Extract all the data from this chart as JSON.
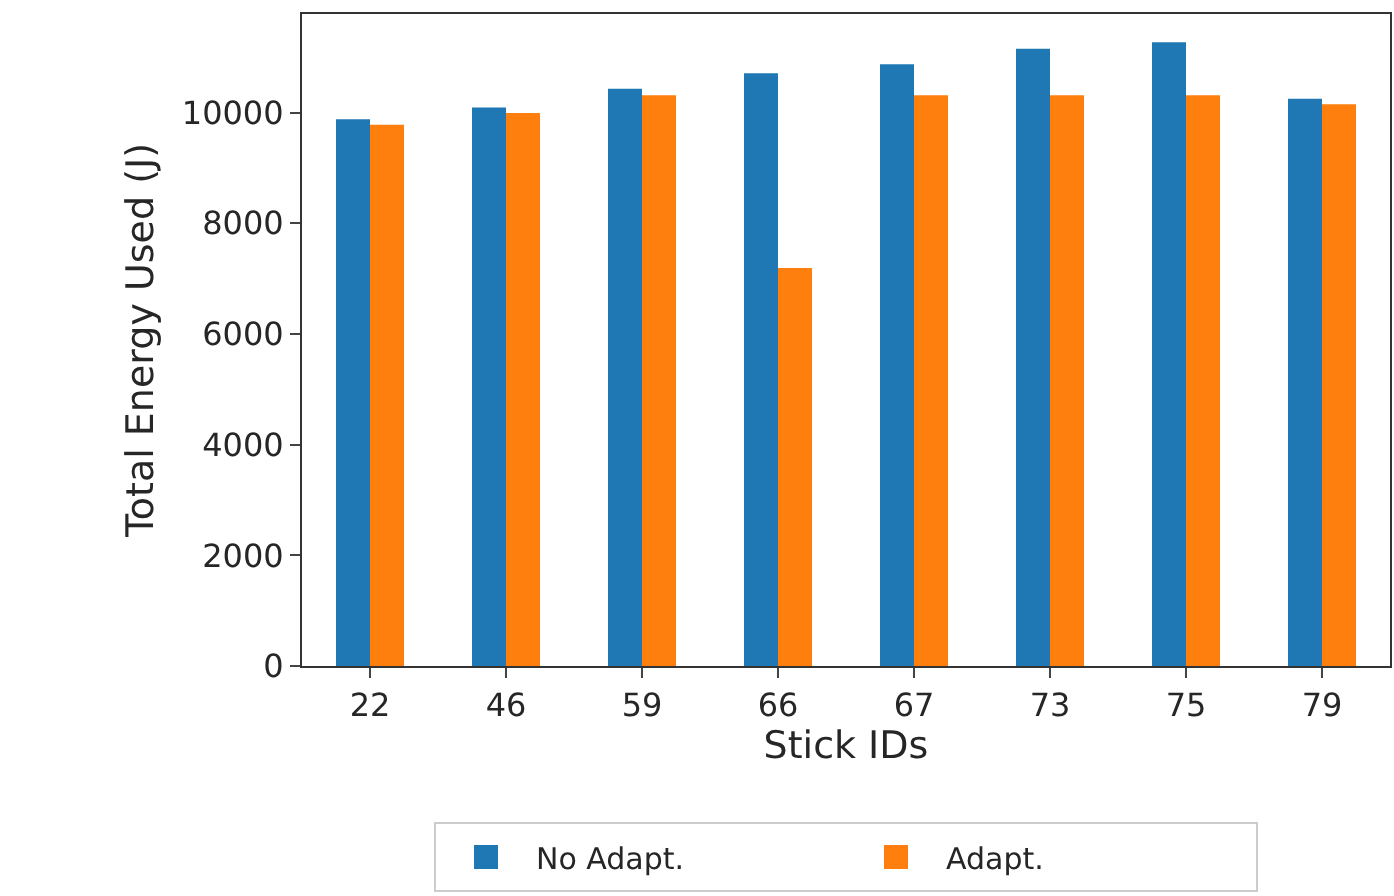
{
  "chart_data": {
    "type": "bar",
    "xlabel": "Stick IDs",
    "ylabel": "Total Energy Used (J)",
    "categories": [
      "22",
      "46",
      "59",
      "66",
      "67",
      "73",
      "75",
      "79"
    ],
    "series": [
      {
        "name": "No Adapt.",
        "color": "#1f77b4",
        "values": [
          9880,
          10090,
          10430,
          10710,
          10870,
          11150,
          11270,
          10250
        ]
      },
      {
        "name": "Adapt.",
        "color": "#ff7f0e",
        "values": [
          9780,
          9990,
          10310,
          7190,
          10310,
          10310,
          10310,
          10150
        ]
      }
    ],
    "ylim": [
      0,
      11780
    ],
    "yticks": [
      0,
      2000,
      4000,
      6000,
      8000,
      10000
    ],
    "legend": "bottom"
  }
}
